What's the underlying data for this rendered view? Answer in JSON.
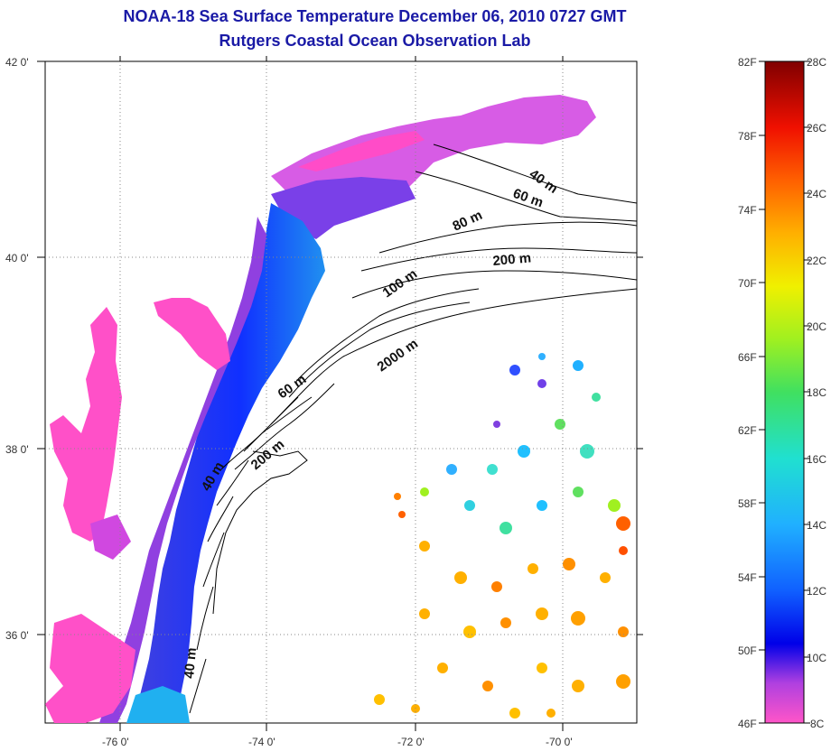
{
  "header": {
    "title_line1": "NOAA-18 Sea Surface Temperature December 06, 2010 0727 GMT",
    "title_line2": "Rutgers Coastal Ocean Observation Lab"
  },
  "map": {
    "lat_labels": [
      "42 0'",
      "40 0'",
      "38 0'",
      "36 0'"
    ],
    "lon_labels": [
      "-76 0'",
      "-74 0'",
      "-72 0'",
      "-70 0'"
    ],
    "depth_labels": [
      "40 m",
      "60 m",
      "80 m",
      "200 m",
      "100 m",
      "2000 m",
      "60 m",
      "200 m",
      "40 m",
      "40 m"
    ],
    "colors": {
      "land": "#ffffff",
      "no_data": "#ffffff",
      "grid": "#777777",
      "contour": "#000000"
    }
  },
  "colorbar": {
    "fahrenheit_labels": [
      "82F",
      "78F",
      "74F",
      "70F",
      "66F",
      "62F",
      "58F",
      "54F",
      "50F",
      "46F"
    ],
    "celsius_labels": [
      "28C",
      "26C",
      "24C",
      "22C",
      "20C",
      "18C",
      "16C",
      "14C",
      "12C",
      "10C",
      "8C"
    ],
    "range_c": [
      8,
      28
    ]
  }
}
